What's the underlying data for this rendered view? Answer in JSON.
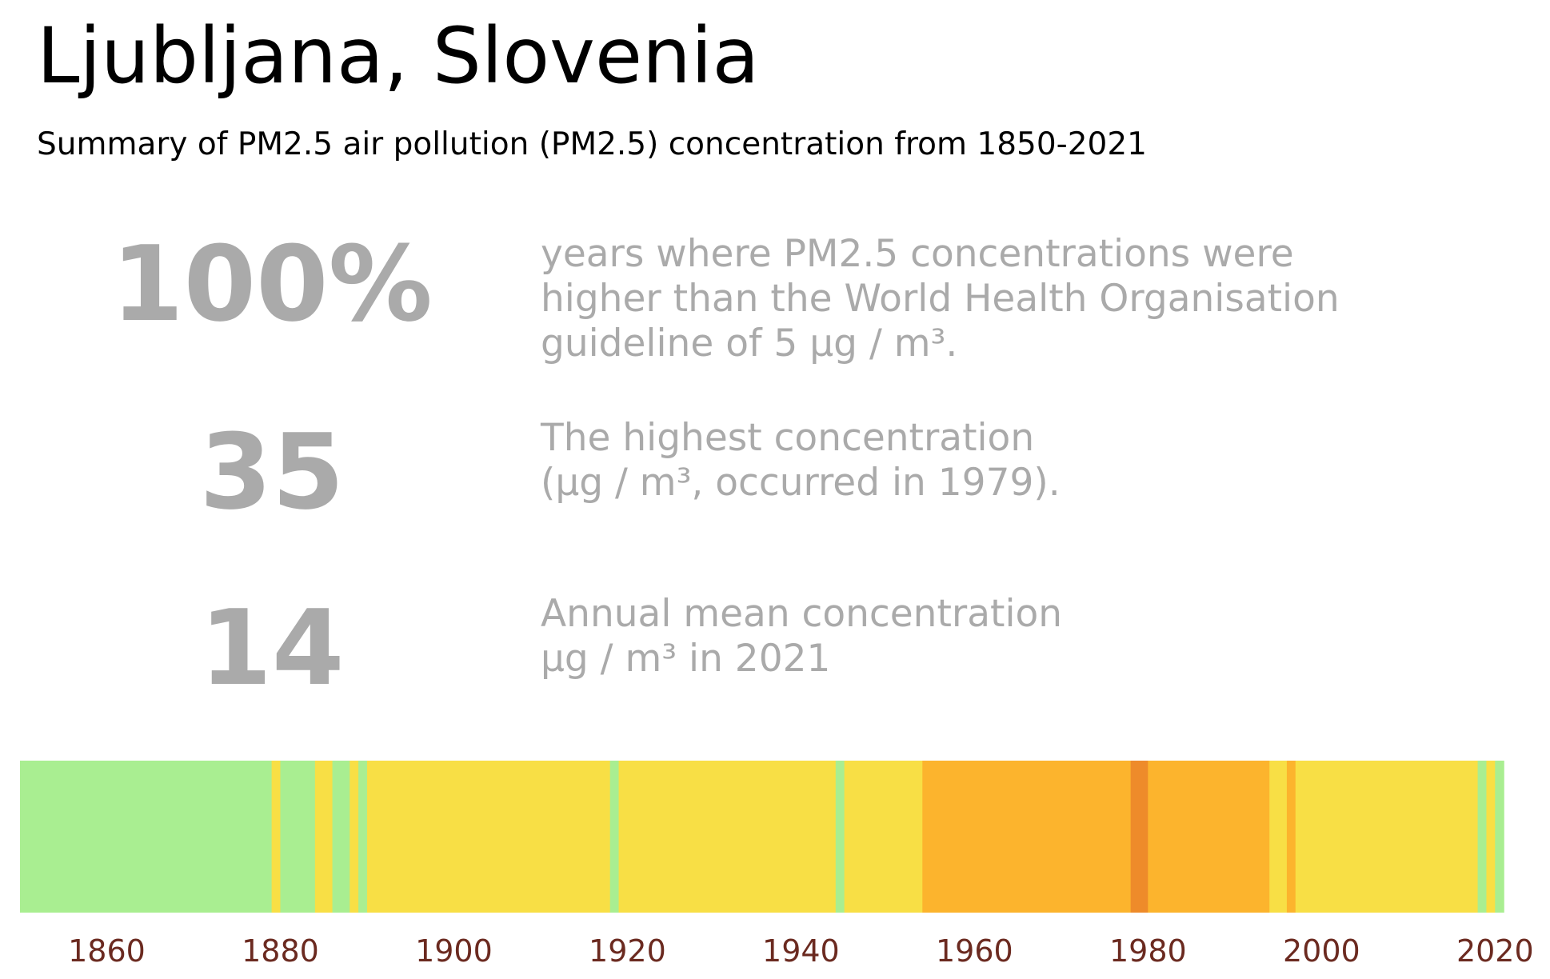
{
  "header": {
    "title": "Ljubljana, Slovenia",
    "subtitle": "Summary of PM2.5 air pollution (PM2.5) concentration from 1850-2021"
  },
  "stats": [
    {
      "value": "100%",
      "lines": [
        "years where PM2.5 concentrations were",
        "higher than the World Health Organisation",
        "guideline of 5 μg / m³."
      ]
    },
    {
      "value": "35",
      "lines": [
        "The highest concentration",
        "(μg / m³, occurred in 1979)."
      ]
    },
    {
      "value": "14",
      "lines": [
        "Annual mean concentration",
        "μg / m³ in 2021"
      ]
    }
  ],
  "colors": {
    "green": "#a9ee91",
    "yellow": "#f8df45",
    "orange": "#fcb42d",
    "dark_orange": "#ee8b2a",
    "tick": "#6b2a20",
    "stat_text": "#aaaaaa"
  },
  "chart_data": {
    "type": "heatmap",
    "x_range": [
      1850,
      2021
    ],
    "xticks": [
      1860,
      1880,
      1900,
      1920,
      1940,
      1960,
      1980,
      2000,
      2020
    ],
    "segments": [
      {
        "start": 1850,
        "end": 1879,
        "level": "green"
      },
      {
        "start": 1879,
        "end": 1880,
        "level": "yellow"
      },
      {
        "start": 1880,
        "end": 1884,
        "level": "green"
      },
      {
        "start": 1884,
        "end": 1886,
        "level": "yellow"
      },
      {
        "start": 1886,
        "end": 1888,
        "level": "green"
      },
      {
        "start": 1888,
        "end": 1889,
        "level": "yellow"
      },
      {
        "start": 1889,
        "end": 1890,
        "level": "green"
      },
      {
        "start": 1890,
        "end": 1918,
        "level": "yellow"
      },
      {
        "start": 1918,
        "end": 1919,
        "level": "green"
      },
      {
        "start": 1919,
        "end": 1944,
        "level": "yellow"
      },
      {
        "start": 1944,
        "end": 1945,
        "level": "green"
      },
      {
        "start": 1945,
        "end": 1954,
        "level": "yellow"
      },
      {
        "start": 1954,
        "end": 1978,
        "level": "orange"
      },
      {
        "start": 1978,
        "end": 1980,
        "level": "dark_orange"
      },
      {
        "start": 1980,
        "end": 1994,
        "level": "orange"
      },
      {
        "start": 1994,
        "end": 1996,
        "level": "yellow"
      },
      {
        "start": 1996,
        "end": 1997,
        "level": "orange"
      },
      {
        "start": 1997,
        "end": 2018,
        "level": "yellow"
      },
      {
        "start": 2018,
        "end": 2019,
        "level": "green"
      },
      {
        "start": 2019,
        "end": 2020,
        "level": "yellow"
      },
      {
        "start": 2020,
        "end": 2021,
        "level": "green"
      }
    ]
  }
}
